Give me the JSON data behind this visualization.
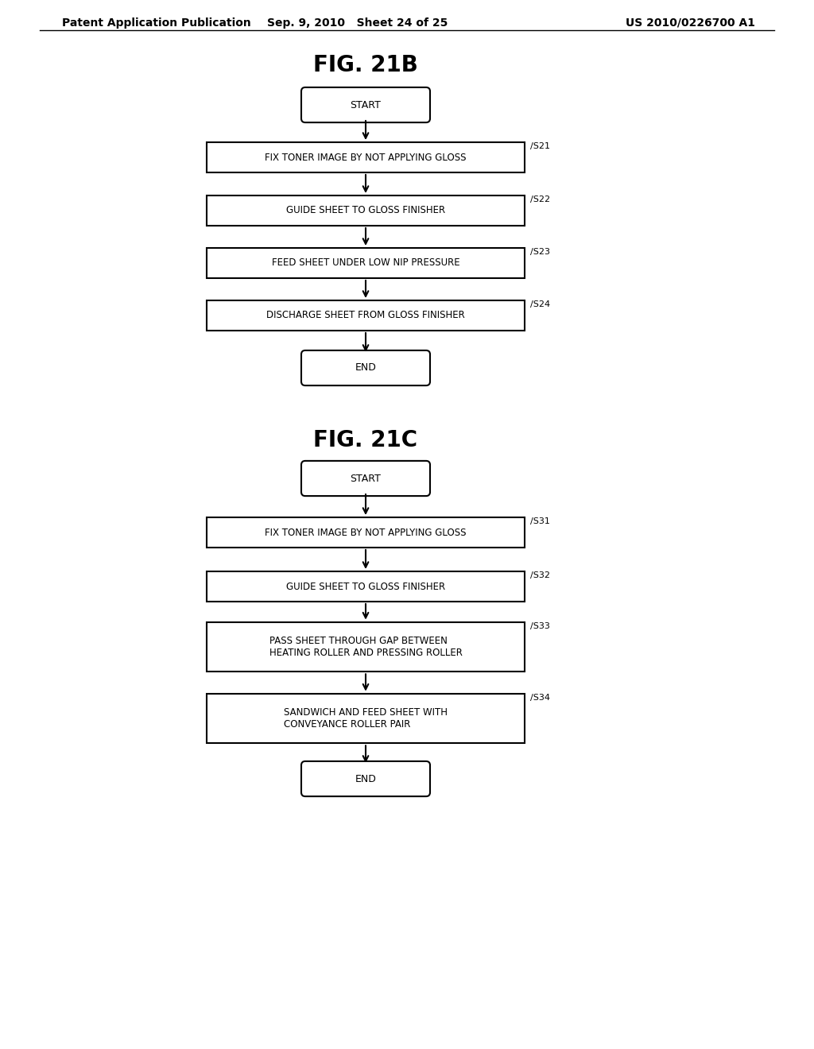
{
  "background_color": "#ffffff",
  "header_left": "Patent Application Publication",
  "header_center": "Sep. 9, 2010   Sheet 24 of 25",
  "header_right": "US 2010/0226700 A1",
  "header_fontsize": 10,
  "fig21b_title": "FIG. 21B",
  "fig21c_title": "FIG. 21C",
  "title_fontsize": 20,
  "flow_fontsize": 8.5,
  "fig21b_steps": [
    {
      "label": "START",
      "type": "rounded",
      "tag": ""
    },
    {
      "label": "FIX TONER IMAGE BY NOT APPLYING GLOSS",
      "type": "rect",
      "tag": "S21"
    },
    {
      "label": "GUIDE SHEET TO GLOSS FINISHER",
      "type": "rect",
      "tag": "S22"
    },
    {
      "label": "FEED SHEET UNDER LOW NIP PRESSURE",
      "type": "rect",
      "tag": "S23"
    },
    {
      "label": "DISCHARGE SHEET FROM GLOSS FINISHER",
      "type": "rect",
      "tag": "S24"
    },
    {
      "label": "END",
      "type": "rounded",
      "tag": ""
    }
  ],
  "fig21c_steps": [
    {
      "label": "START",
      "type": "rounded",
      "tag": ""
    },
    {
      "label": "FIX TONER IMAGE BY NOT APPLYING GLOSS",
      "type": "rect",
      "tag": "S31"
    },
    {
      "label": "GUIDE SHEET TO GLOSS FINISHER",
      "type": "rect",
      "tag": "S32"
    },
    {
      "label": "PASS SHEET THROUGH GAP BETWEEN\nHEATING ROLLER AND PRESSING ROLLER",
      "type": "rect",
      "tag": "S33"
    },
    {
      "label": "SANDWICH AND FEED SHEET WITH\nCONVEYANCE ROLLER PAIR",
      "type": "rect",
      "tag": "S34"
    },
    {
      "label": "END",
      "type": "rounded",
      "tag": ""
    }
  ]
}
